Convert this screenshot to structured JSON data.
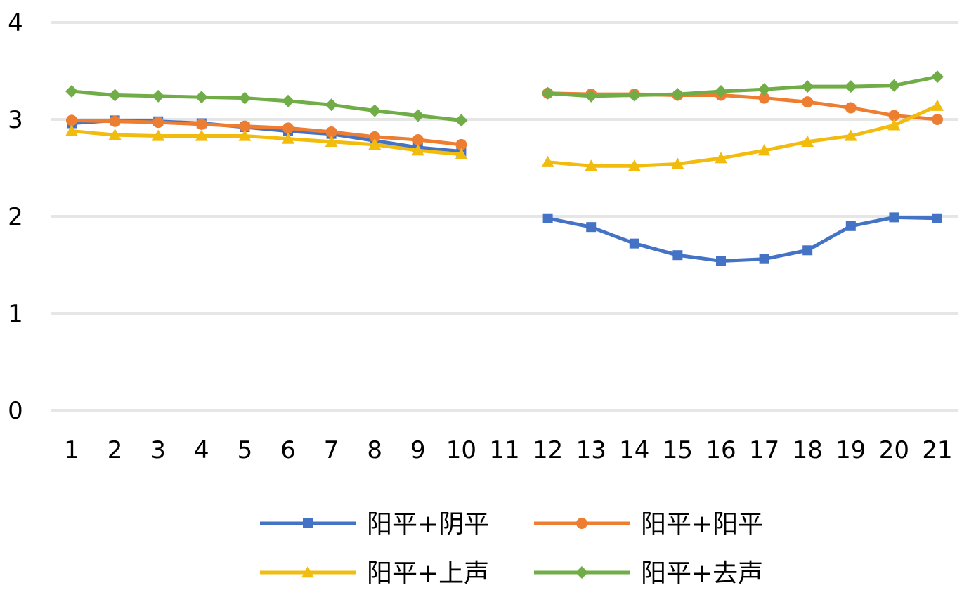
{
  "chart_data": {
    "type": "line",
    "title": "",
    "xlabel": "",
    "ylabel": "",
    "ylim": [
      0,
      4
    ],
    "y_ticks": [
      "0",
      "1",
      "2",
      "3",
      "4"
    ],
    "categories": [
      "1",
      "2",
      "3",
      "4",
      "5",
      "6",
      "7",
      "8",
      "9",
      "10",
      "11",
      "12",
      "13",
      "14",
      "15",
      "16",
      "17",
      "18",
      "19",
      "20",
      "21"
    ],
    "grid": "horizontal",
    "legend_position": "bottom",
    "series": [
      {
        "name": "阳平+阴平",
        "color": "#4472C4",
        "marker": "square",
        "values": [
          2.96,
          2.99,
          2.98,
          2.96,
          2.92,
          2.88,
          2.85,
          2.78,
          2.71,
          2.67,
          null,
          1.98,
          1.89,
          1.72,
          1.6,
          1.54,
          1.56,
          1.65,
          1.9,
          1.99,
          1.98
        ]
      },
      {
        "name": "阳平+阳平",
        "color": "#ED7D31",
        "marker": "circle",
        "values": [
          2.99,
          2.98,
          2.97,
          2.95,
          2.93,
          2.91,
          2.87,
          2.82,
          2.79,
          2.74,
          null,
          3.27,
          3.26,
          3.26,
          3.25,
          3.25,
          3.22,
          3.18,
          3.12,
          3.04,
          3.0
        ]
      },
      {
        "name": "阳平+上声",
        "color": "#F2BC0F",
        "marker": "triangle",
        "values": [
          2.88,
          2.84,
          2.83,
          2.83,
          2.83,
          2.8,
          2.77,
          2.74,
          2.68,
          2.64,
          null,
          2.56,
          2.52,
          2.52,
          2.54,
          2.6,
          2.68,
          2.77,
          2.83,
          2.94,
          3.14
        ]
      },
      {
        "name": "阳平+去声",
        "color": "#70AD47",
        "marker": "diamond",
        "values": [
          3.29,
          3.25,
          3.24,
          3.23,
          3.22,
          3.19,
          3.15,
          3.09,
          3.04,
          2.99,
          null,
          3.27,
          3.24,
          3.25,
          3.26,
          3.29,
          3.31,
          3.34,
          3.34,
          3.35,
          3.44
        ]
      }
    ]
  }
}
